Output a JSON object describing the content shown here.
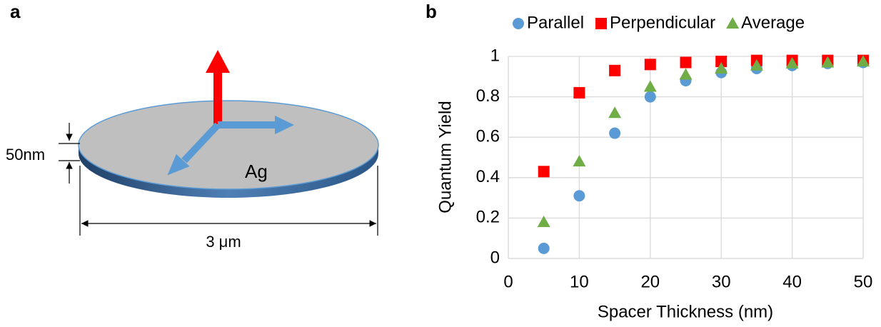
{
  "panel_labels": [
    "a",
    "b"
  ],
  "diagram": {
    "thickness_label": "50nm",
    "material_label": "Ag",
    "width_label": "3 μm"
  },
  "chart_data": {
    "type": "scatter",
    "x_label": "Spacer Thickness (nm)",
    "y_label": "Quantum Yield",
    "x": [
      5,
      10,
      15,
      20,
      25,
      30,
      35,
      40,
      45,
      50
    ],
    "series": [
      {
        "name": "Parallel",
        "color": "#5b9bd5",
        "marker": "circle",
        "values": [
          0.05,
          0.31,
          0.62,
          0.8,
          0.88,
          0.92,
          0.94,
          0.955,
          0.965,
          0.97
        ]
      },
      {
        "name": "Perpendicular",
        "color": "#ff0000",
        "marker": "square",
        "values": [
          0.43,
          0.82,
          0.93,
          0.96,
          0.97,
          0.975,
          0.98,
          0.98,
          0.98,
          0.98
        ]
      },
      {
        "name": "Average",
        "color": "#70ad47",
        "marker": "triangle",
        "values": [
          0.18,
          0.48,
          0.72,
          0.85,
          0.91,
          0.94,
          0.955,
          0.965,
          0.97,
          0.975
        ]
      }
    ],
    "xlim": [
      0,
      50
    ],
    "xticks": [
      0,
      10,
      20,
      30,
      40,
      50
    ],
    "ylim": [
      0,
      1
    ],
    "yticks": [
      0,
      0.2,
      0.4,
      0.6,
      0.8,
      1
    ],
    "grid": true,
    "legend": "top"
  }
}
